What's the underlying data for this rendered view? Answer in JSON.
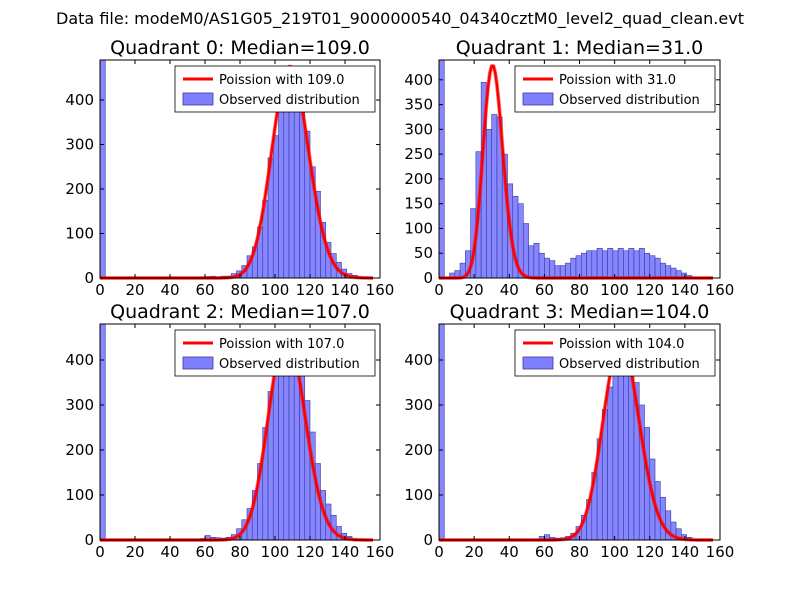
{
  "figure_title": "Data file: modeM0/AS1G05_219T01_9000000540_04340cztM0_level2_quad_clean.evt",
  "colors": {
    "histogram": "#7f7fff",
    "histogram_edge": "#3a3aa0",
    "poisson_line": "#ff0000"
  },
  "chart_data": [
    {
      "type": "bar",
      "title": "Quadrant 0: Median=109.0",
      "median": 109.0,
      "xlim": [
        0,
        160
      ],
      "ylim": [
        0,
        490
      ],
      "xticks": [
        0,
        20,
        40,
        60,
        80,
        100,
        120,
        140,
        160
      ],
      "yticks": [
        0,
        100,
        200,
        300,
        400
      ],
      "bin_width": 3,
      "bins": [
        [
          0,
          490
        ],
        [
          60,
          3
        ],
        [
          63,
          4
        ],
        [
          66,
          2
        ],
        [
          69,
          4
        ],
        [
          72,
          4
        ],
        [
          75,
          10
        ],
        [
          78,
          16
        ],
        [
          81,
          28
        ],
        [
          84,
          50
        ],
        [
          87,
          70
        ],
        [
          90,
          115
        ],
        [
          93,
          175
        ],
        [
          96,
          270
        ],
        [
          99,
          320
        ],
        [
          102,
          375
        ],
        [
          105,
          400
        ],
        [
          108,
          390
        ],
        [
          111,
          440
        ],
        [
          114,
          390
        ],
        [
          117,
          330
        ],
        [
          120,
          250
        ],
        [
          123,
          195
        ],
        [
          126,
          125
        ],
        [
          129,
          80
        ],
        [
          132,
          55
        ],
        [
          135,
          35
        ],
        [
          138,
          20
        ],
        [
          141,
          10
        ],
        [
          144,
          6
        ],
        [
          147,
          3
        ],
        [
          150,
          2
        ]
      ],
      "poisson": {
        "lambda": 109.0,
        "peak": 475
      },
      "legend": [
        "Poission with 109.0",
        "Observed distribution"
      ]
    },
    {
      "type": "bar",
      "title": "Quadrant 1: Median=31.0",
      "median": 31.0,
      "xlim": [
        0,
        160
      ],
      "ylim": [
        0,
        440
      ],
      "xticks": [
        0,
        20,
        40,
        60,
        80,
        100,
        120,
        140,
        160
      ],
      "yticks": [
        0,
        50,
        100,
        150,
        200,
        250,
        300,
        350,
        400
      ],
      "bin_width": 3,
      "bins": [
        [
          0,
          440
        ],
        [
          6,
          10
        ],
        [
          9,
          15
        ],
        [
          12,
          30
        ],
        [
          15,
          55
        ],
        [
          18,
          140
        ],
        [
          21,
          255
        ],
        [
          24,
          395
        ],
        [
          27,
          300
        ],
        [
          30,
          330
        ],
        [
          33,
          325
        ],
        [
          36,
          250
        ],
        [
          39,
          190
        ],
        [
          42,
          165
        ],
        [
          45,
          150
        ],
        [
          48,
          110
        ],
        [
          51,
          65
        ],
        [
          54,
          70
        ],
        [
          57,
          50
        ],
        [
          60,
          40
        ],
        [
          63,
          35
        ],
        [
          66,
          25
        ],
        [
          69,
          25
        ],
        [
          72,
          30
        ],
        [
          75,
          40
        ],
        [
          78,
          45
        ],
        [
          81,
          50
        ],
        [
          84,
          55
        ],
        [
          87,
          55
        ],
        [
          90,
          60
        ],
        [
          93,
          55
        ],
        [
          96,
          60
        ],
        [
          99,
          55
        ],
        [
          102,
          60
        ],
        [
          105,
          55
        ],
        [
          108,
          60
        ],
        [
          111,
          55
        ],
        [
          114,
          60
        ],
        [
          117,
          50
        ],
        [
          120,
          45
        ],
        [
          123,
          40
        ],
        [
          126,
          30
        ],
        [
          129,
          25
        ],
        [
          132,
          20
        ],
        [
          135,
          15
        ],
        [
          138,
          10
        ],
        [
          141,
          5
        ]
      ],
      "poisson": {
        "lambda": 31.0,
        "peak": 428
      },
      "legend": [
        "Poission with 31.0",
        "Observed distribution"
      ]
    },
    {
      "type": "bar",
      "title": "Quadrant 2: Median=107.0",
      "median": 107.0,
      "xlim": [
        0,
        160
      ],
      "ylim": [
        0,
        480
      ],
      "xticks": [
        0,
        20,
        40,
        60,
        80,
        100,
        120,
        140,
        160
      ],
      "yticks": [
        0,
        100,
        200,
        300,
        400
      ],
      "bin_width": 3,
      "bins": [
        [
          0,
          480
        ],
        [
          57,
          3
        ],
        [
          60,
          10
        ],
        [
          63,
          6
        ],
        [
          66,
          5
        ],
        [
          69,
          4
        ],
        [
          72,
          6
        ],
        [
          75,
          12
        ],
        [
          78,
          25
        ],
        [
          81,
          45
        ],
        [
          84,
          70
        ],
        [
          87,
          110
        ],
        [
          90,
          170
        ],
        [
          93,
          250
        ],
        [
          96,
          330
        ],
        [
          99,
          380
        ],
        [
          102,
          420
        ],
        [
          105,
          440
        ],
        [
          108,
          460
        ],
        [
          111,
          430
        ],
        [
          114,
          380
        ],
        [
          117,
          310
        ],
        [
          120,
          240
        ],
        [
          123,
          170
        ],
        [
          126,
          110
        ],
        [
          129,
          80
        ],
        [
          132,
          55
        ],
        [
          135,
          30
        ],
        [
          138,
          15
        ],
        [
          141,
          8
        ],
        [
          144,
          3
        ]
      ],
      "poisson": {
        "lambda": 107.0,
        "peak": 460
      },
      "legend": [
        "Poission with 107.0",
        "Observed distribution"
      ]
    },
    {
      "type": "bar",
      "title": "Quadrant 3: Median=104.0",
      "median": 104.0,
      "xlim": [
        0,
        160
      ],
      "ylim": [
        0,
        480
      ],
      "xticks": [
        0,
        20,
        40,
        60,
        80,
        100,
        120,
        140,
        160
      ],
      "yticks": [
        0,
        100,
        200,
        300,
        400
      ],
      "bin_width": 3,
      "bins": [
        [
          0,
          480
        ],
        [
          57,
          8
        ],
        [
          60,
          12
        ],
        [
          63,
          6
        ],
        [
          66,
          4
        ],
        [
          69,
          5
        ],
        [
          72,
          8
        ],
        [
          75,
          15
        ],
        [
          78,
          30
        ],
        [
          81,
          55
        ],
        [
          84,
          90
        ],
        [
          87,
          150
        ],
        [
          90,
          225
        ],
        [
          93,
          290
        ],
        [
          96,
          340
        ],
        [
          99,
          400
        ],
        [
          102,
          450
        ],
        [
          105,
          420
        ],
        [
          108,
          380
        ],
        [
          111,
          350
        ],
        [
          114,
          300
        ],
        [
          117,
          250
        ],
        [
          120,
          180
        ],
        [
          123,
          130
        ],
        [
          126,
          95
        ],
        [
          129,
          65
        ],
        [
          132,
          40
        ],
        [
          135,
          25
        ],
        [
          138,
          12
        ],
        [
          141,
          6
        ]
      ],
      "poisson": {
        "lambda": 104.0,
        "peak": 440
      },
      "legend": [
        "Poission with 104.0",
        "Observed distribution"
      ]
    }
  ]
}
